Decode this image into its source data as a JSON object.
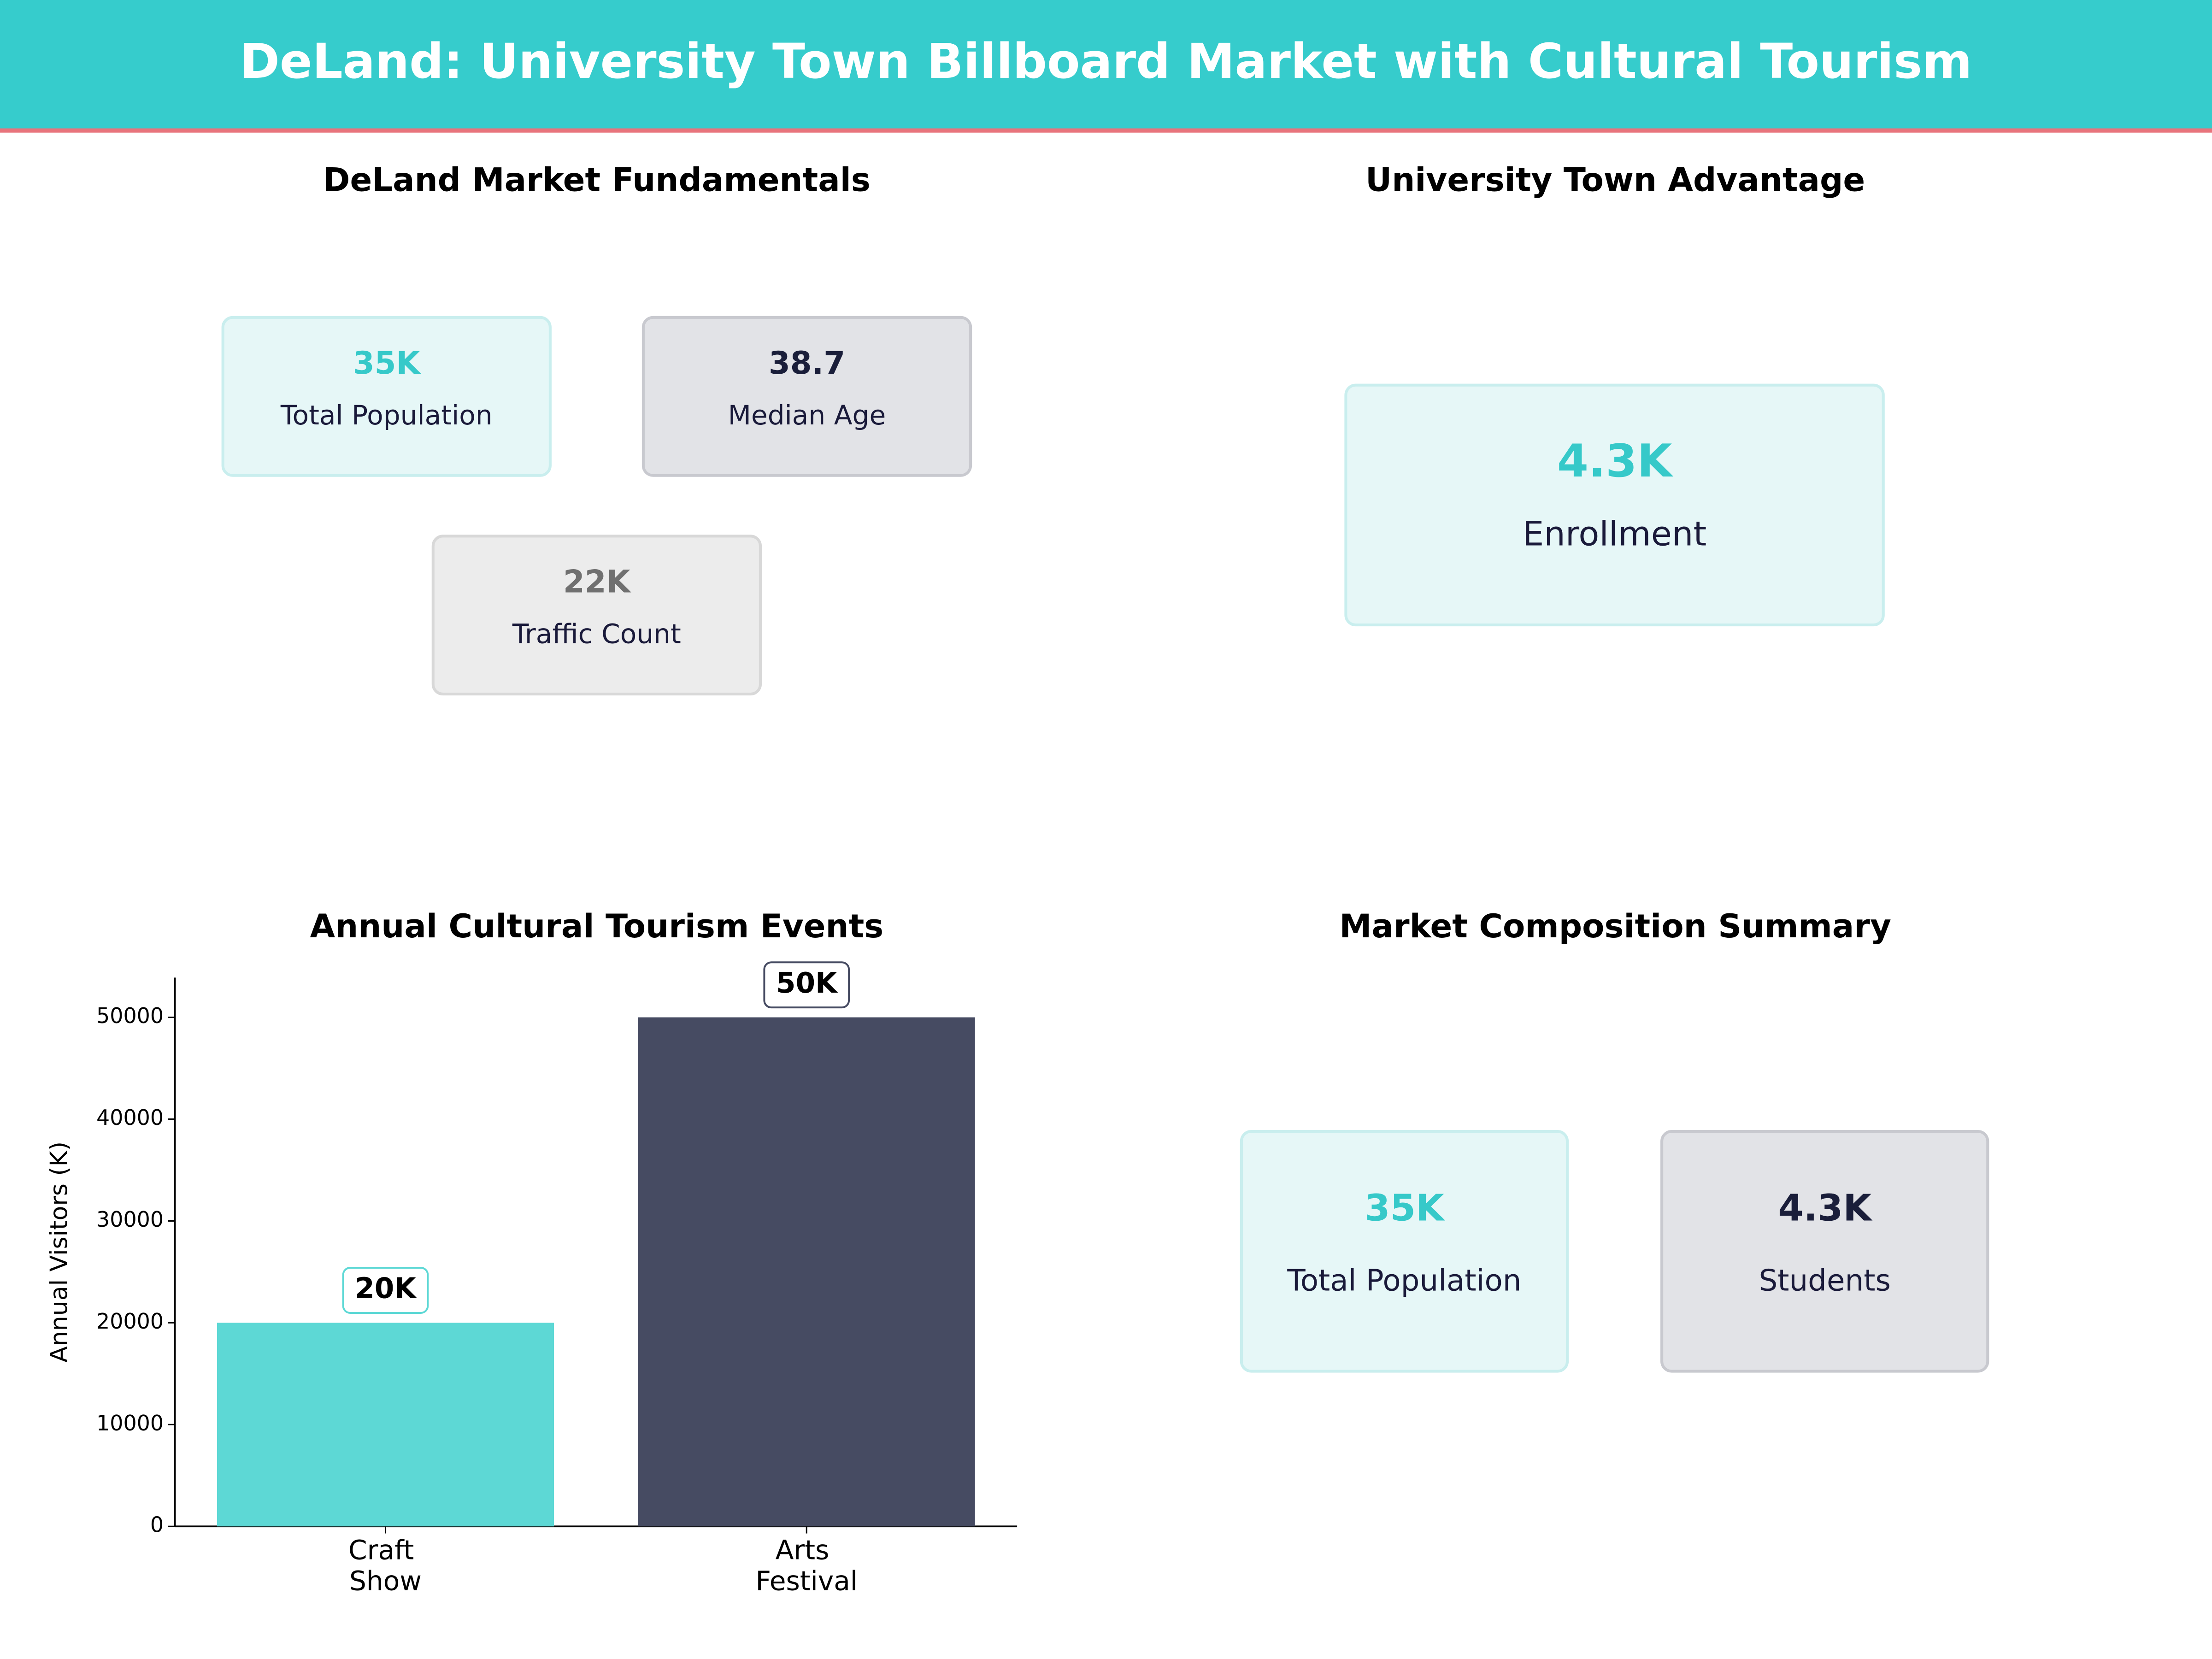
{
  "title": "DeLand: University Town Billboard Market with Cultural Tourism",
  "panels": [
    {
      "title": "DeLand Market Fundamentals",
      "cards": [
        {
          "value": "35K",
          "label": "Total Population"
        },
        {
          "value": "38.7",
          "label": "Median Age"
        },
        {
          "value": "22K",
          "label": "Traffic Count"
        }
      ]
    },
    {
      "title": "University Town Advantage",
      "cards": [
        {
          "value": "4.3K",
          "label": "Enrollment"
        }
      ]
    },
    {
      "title": "Market Composition Summary",
      "cards": [
        {
          "value": "35K",
          "label": "Total Population"
        },
        {
          "value": "4.3K",
          "label": "Students"
        }
      ]
    }
  ],
  "chart_data": {
    "type": "bar",
    "title": "Annual Cultural Tourism Events",
    "categories": [
      "Craft Show",
      "Arts Festival"
    ],
    "values": [
      20000,
      50000
    ],
    "value_labels": [
      "20K",
      "50K"
    ],
    "colors": [
      "#5dd8d5",
      "#464b62"
    ],
    "ylabel": "Annual Visitors (K)",
    "ylim": [
      0,
      53900
    ],
    "yticks": [
      0,
      10000,
      20000,
      30000,
      40000,
      50000
    ]
  }
}
